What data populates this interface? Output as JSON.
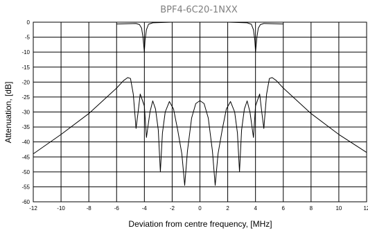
{
  "chart_data": {
    "type": "line",
    "title": "BPF4-6C20-1NXX",
    "xlabel": "Deviation from centre frequency, [MHz]",
    "ylabel": "Attenuation, [dB]",
    "xlim": [
      -12,
      12
    ],
    "ylim": [
      -60,
      0
    ],
    "xticks": [
      -12,
      -10,
      -8,
      -6,
      -4,
      -2,
      0,
      2,
      4,
      6,
      8,
      10,
      12
    ],
    "yticks": [
      0,
      -5,
      -10,
      -15,
      -20,
      -25,
      -30,
      -35,
      -40,
      -45,
      -50,
      -55,
      -60
    ],
    "grid": true,
    "legend": "none",
    "series": [
      {
        "points": [
          [
            -12,
            -44
          ],
          [
            -10,
            -37.5
          ],
          [
            -8,
            -30.5
          ],
          [
            -6,
            -22
          ],
          [
            -5.5,
            -19.5
          ],
          [
            -5.2,
            -18.5
          ],
          [
            -5.0,
            -18.8
          ],
          [
            -4.8,
            -24
          ],
          [
            -4.6,
            -35.5
          ],
          [
            -4.45,
            -30
          ],
          [
            -4.3,
            -24
          ],
          [
            -4.15,
            -26
          ],
          [
            -4.0,
            -28
          ],
          [
            -3.85,
            -38.5
          ],
          [
            -3.6,
            -30
          ],
          [
            -3.4,
            -26.3
          ],
          [
            -3.2,
            -29
          ],
          [
            -3.0,
            -36
          ],
          [
            -2.85,
            -50
          ],
          [
            -2.7,
            -37
          ],
          [
            -2.5,
            -30
          ],
          [
            -2.2,
            -26.5
          ],
          [
            -1.9,
            -29
          ],
          [
            -1.6,
            -36
          ],
          [
            -1.3,
            -44
          ],
          [
            -1.1,
            -54.5
          ],
          [
            -0.9,
            -43
          ],
          [
            -0.6,
            -32
          ],
          [
            -0.3,
            -27.2
          ],
          [
            0,
            -26.2
          ],
          [
            0.3,
            -27.2
          ],
          [
            0.6,
            -32
          ],
          [
            0.9,
            -43
          ],
          [
            1.1,
            -54.5
          ],
          [
            1.3,
            -44
          ],
          [
            1.6,
            -36
          ],
          [
            1.9,
            -29
          ],
          [
            2.2,
            -26.5
          ],
          [
            2.5,
            -30
          ],
          [
            2.7,
            -37
          ],
          [
            2.85,
            -50
          ],
          [
            3.0,
            -36
          ],
          [
            3.2,
            -29
          ],
          [
            3.4,
            -26.3
          ],
          [
            3.6,
            -30
          ],
          [
            3.85,
            -38.5
          ],
          [
            4.0,
            -28
          ],
          [
            4.15,
            -26
          ],
          [
            4.3,
            -24
          ],
          [
            4.45,
            -30
          ],
          [
            4.6,
            -35.5
          ],
          [
            4.8,
            -24
          ],
          [
            5.0,
            -18.8
          ],
          [
            5.2,
            -18.5
          ],
          [
            5.5,
            -19.5
          ],
          [
            6,
            -22
          ],
          [
            8,
            -30.5
          ],
          [
            10,
            -37.5
          ],
          [
            12,
            -43.5
          ]
        ]
      },
      {
        "points": [
          [
            -6.0,
            -0.6
          ],
          [
            -4.6,
            -0.45
          ],
          [
            -4.35,
            -0.8
          ],
          [
            -4.2,
            -2
          ],
          [
            -4.1,
            -5
          ],
          [
            -4.0,
            -10
          ],
          [
            -3.95,
            -6
          ],
          [
            -3.85,
            -2.5
          ],
          [
            -3.7,
            -0.7
          ],
          [
            -3.4,
            -0.2
          ],
          [
            -2,
            0
          ],
          [
            0,
            0
          ],
          [
            2,
            0
          ],
          [
            3.4,
            -0.2
          ],
          [
            3.7,
            -0.7
          ],
          [
            3.85,
            -2.5
          ],
          [
            3.95,
            -6
          ],
          [
            4.0,
            -10
          ],
          [
            4.1,
            -5
          ],
          [
            4.2,
            -2
          ],
          [
            4.35,
            -0.8
          ],
          [
            4.6,
            -0.45
          ],
          [
            6.0,
            -0.6
          ]
        ]
      }
    ]
  }
}
